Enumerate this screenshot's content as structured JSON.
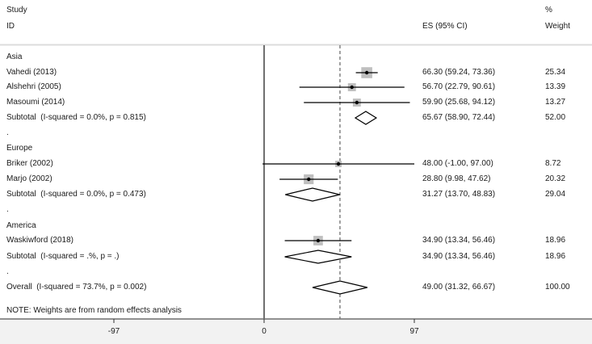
{
  "header": {
    "study_label": "Study",
    "id_label": "ID",
    "es_label": "ES (95% CI)",
    "pct_label": "%",
    "weight_label": "Weight"
  },
  "note": "NOTE: Weights are from random effects analysis",
  "colors": {
    "line": "#000000",
    "box": "#bfbfbf",
    "header_rule": "#dcdcdc",
    "axis": "#6e6e6e",
    "bottom_bg": "#f2f2f2"
  },
  "chart_data": {
    "type": "forest",
    "title": "",
    "xlabel": "",
    "x_ticks": [
      -97,
      0,
      97
    ],
    "x_range": [
      -170,
      212
    ],
    "null_line": 0,
    "overall_line": 49.0,
    "rows": [
      {
        "kind": "group",
        "label": "Asia"
      },
      {
        "kind": "study",
        "label": "Vahedi (2013)",
        "es": 66.3,
        "lo": 59.24,
        "hi": 73.36,
        "ci_text": "66.30 (59.24, 73.36)",
        "weight": "25.34"
      },
      {
        "kind": "study",
        "label": "Alshehri (2005)",
        "es": 56.7,
        "lo": 22.79,
        "hi": 90.61,
        "ci_text": "56.70 (22.79, 90.61)",
        "weight": "13.39"
      },
      {
        "kind": "study",
        "label": "Masoumi (2014)",
        "es": 59.9,
        "lo": 25.68,
        "hi": 94.12,
        "ci_text": "59.90 (25.68, 94.12)",
        "weight": "13.27"
      },
      {
        "kind": "subtotal",
        "label": "Subtotal  (I-squared = 0.0%, p = 0.815)",
        "es": 65.67,
        "lo": 58.9,
        "hi": 72.44,
        "ci_text": "65.67 (58.90, 72.44)",
        "weight": "52.00"
      },
      {
        "kind": "spacer",
        "label": "."
      },
      {
        "kind": "group",
        "label": "Europe"
      },
      {
        "kind": "study",
        "label": "Briker (2002)",
        "es": 48.0,
        "lo": -1.0,
        "hi": 97.0,
        "ci_text": "48.00 (-1.00, 97.00)",
        "weight": "8.72"
      },
      {
        "kind": "study",
        "label": "Marjo (2002)",
        "es": 28.8,
        "lo": 9.98,
        "hi": 47.62,
        "ci_text": "28.80 (9.98, 47.62)",
        "weight": "20.32"
      },
      {
        "kind": "subtotal",
        "label": "Subtotal  (I-squared = 0.0%, p = 0.473)",
        "es": 31.27,
        "lo": 13.7,
        "hi": 48.83,
        "ci_text": "31.27 (13.70, 48.83)",
        "weight": "29.04"
      },
      {
        "kind": "spacer",
        "label": "."
      },
      {
        "kind": "group",
        "label": "America"
      },
      {
        "kind": "study",
        "label": "Waskiwford (2018)",
        "es": 34.9,
        "lo": 13.34,
        "hi": 56.46,
        "ci_text": "34.90 (13.34, 56.46)",
        "weight": "18.96"
      },
      {
        "kind": "subtotal",
        "label": "Subtotal  (I-squared = .%, p = .)",
        "es": 34.9,
        "lo": 13.34,
        "hi": 56.46,
        "ci_text": "34.90 (13.34, 56.46)",
        "weight": "18.96"
      },
      {
        "kind": "spacer",
        "label": "."
      },
      {
        "kind": "overall",
        "label": "Overall  (I-squared = 73.7%, p = 0.002)",
        "es": 49.0,
        "lo": 31.32,
        "hi": 66.67,
        "ci_text": "49.00 (31.32, 66.67)",
        "weight": "100.00"
      }
    ]
  }
}
